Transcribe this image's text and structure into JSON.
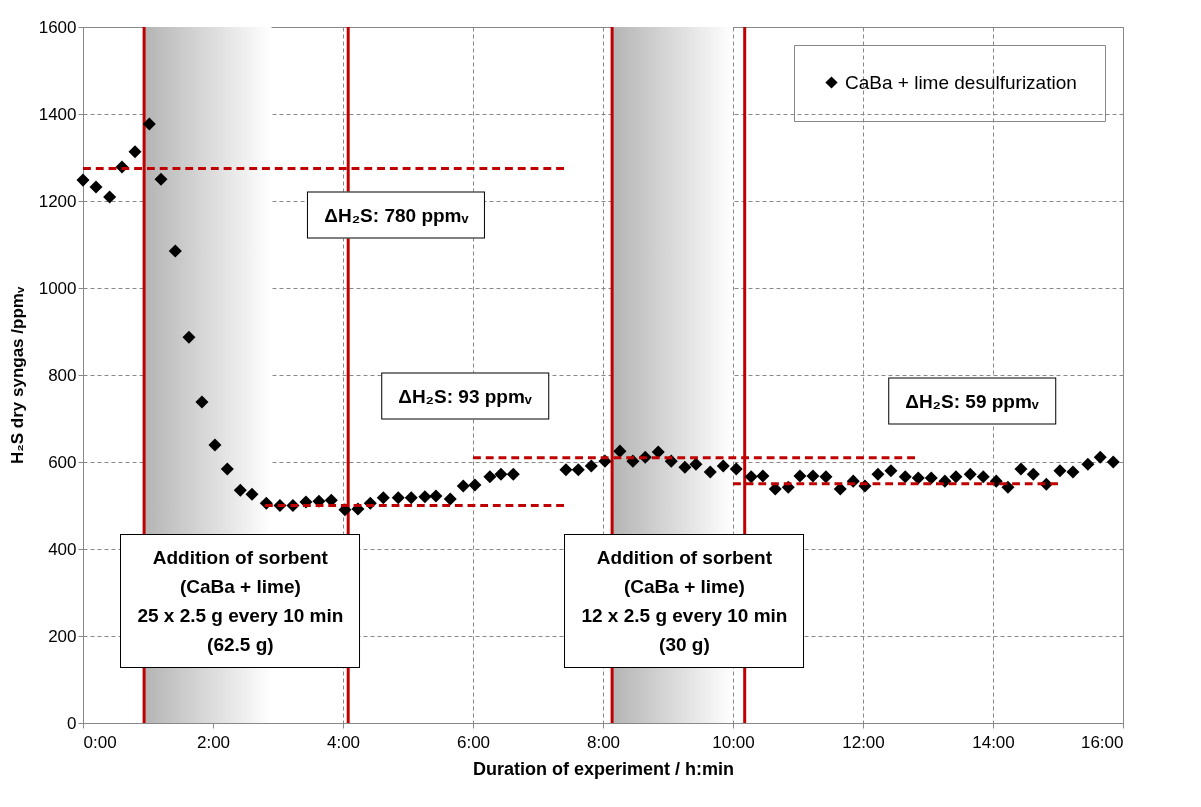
{
  "chart_data": {
    "type": "scatter",
    "xlabel": "Duration of experiment / h:min",
    "ylabel": "H₂S dry syngas /ppmᵥ",
    "xlim": [
      0,
      16
    ],
    "xticks": [
      {
        "value": 0,
        "label": "0:00"
      },
      {
        "value": 2,
        "label": "2:00"
      },
      {
        "value": 4,
        "label": "4:00"
      },
      {
        "value": 6,
        "label": "6:00"
      },
      {
        "value": 8,
        "label": "8:00"
      },
      {
        "value": 10,
        "label": "10:00"
      },
      {
        "value": 12,
        "label": "12:00"
      },
      {
        "value": 14,
        "label": "14:00"
      },
      {
        "value": 16,
        "label": "16:00"
      }
    ],
    "ylim": [
      0,
      1600
    ],
    "yticks": [
      0,
      200,
      400,
      600,
      800,
      1000,
      1200,
      1400,
      1600
    ],
    "grid": true,
    "legend": "top right",
    "marker": "diamond",
    "series": [
      {
        "name": "CaBa + lime desulfurization",
        "color": "#000000",
        "x": [
          0,
          0.2,
          0.41,
          0.6,
          0.8,
          1.02,
          1.2,
          1.42,
          1.63,
          1.83,
          2.03,
          2.22,
          2.42,
          2.6,
          2.82,
          3.03,
          3.23,
          3.43,
          3.63,
          3.82,
          4.03,
          4.23,
          4.42,
          4.62,
          4.85,
          5.05,
          5.26,
          5.43,
          5.65,
          5.85,
          6.03,
          6.26,
          6.43,
          6.62,
          7.43,
          7.62,
          7.82,
          8.03,
          8.26,
          8.46,
          8.65,
          8.85,
          9.05,
          9.26,
          9.43,
          9.65,
          9.85,
          10.05,
          10.28,
          10.46,
          10.65,
          10.85,
          11.03,
          11.23,
          11.43,
          11.65,
          11.85,
          12.03,
          12.23,
          12.43,
          12.65,
          12.85,
          13.05,
          13.26,
          13.43,
          13.65,
          13.85,
          14.05,
          14.23,
          14.43,
          14.62,
          14.82,
          15.03,
          15.23,
          15.46,
          15.65,
          15.85
        ],
        "values": [
          1248,
          1232,
          1209,
          1278,
          1313,
          1377,
          1250,
          1085,
          887,
          738,
          639,
          584,
          535,
          526,
          505,
          500,
          500,
          508,
          510,
          512,
          490,
          492,
          505,
          518,
          518,
          518,
          520,
          522,
          515,
          545,
          547,
          566,
          572,
          572,
          582,
          582,
          591,
          602,
          625,
          602,
          611,
          623,
          602,
          588,
          595,
          577,
          591,
          584,
          566,
          568,
          538,
          542,
          568,
          568,
          566,
          538,
          556,
          545,
          572,
          580,
          566,
          563,
          563,
          556,
          566,
          572,
          566,
          556,
          542,
          584,
          572,
          549,
          580,
          577,
          595,
          611,
          600
        ]
      },
      {
        "type": "line",
        "color": "#c00000",
        "line_style": "dashed",
        "marker": "none",
        "x": [
          0,
          7.4
        ],
        "values": [
          1275,
          1275
        ]
      },
      {
        "type": "line",
        "color": "#c00000",
        "line_style": "dashed",
        "marker": "none",
        "x": [
          2.8,
          7.4
        ],
        "values": [
          500,
          500
        ]
      },
      {
        "type": "line",
        "color": "#c00000",
        "line_style": "dashed",
        "marker": "none",
        "x": [
          6.0,
          12.8
        ],
        "values": [
          610,
          610
        ]
      },
      {
        "type": "line",
        "color": "#c00000",
        "line_style": "dashed",
        "marker": "none",
        "x": [
          10.0,
          15.0
        ],
        "values": [
          550,
          550
        ]
      }
    ],
    "ref_lines": [
      {
        "axis": "x",
        "value": 0.94,
        "color": "#c00000"
      },
      {
        "axis": "x",
        "value": 4.08,
        "color": "#c00000"
      },
      {
        "axis": "x",
        "value": 8.14,
        "color": "#c00000"
      },
      {
        "axis": "x",
        "value": 10.18,
        "color": "#c00000"
      }
    ],
    "bands": [
      {
        "axis": "x",
        "from": 0.94,
        "to": 2.9,
        "color": "#b4b4b4"
      },
      {
        "axis": "x",
        "from": 8.14,
        "to": 10.0,
        "color": "#b4b4b4"
      }
    ],
    "annotations": [
      "ΔH₂S: 780 ppmᵥ",
      "ΔH₂S: 93 ppmᵥ",
      "ΔH₂S: 59 ppmᵥ",
      "Addition of sorbent\n(CaBa + lime)\n25 x 2.5 g every 10 min\n(62.5 g)",
      "Addition of sorbent\n(CaBa + lime)\n12 x 2.5 g every 10 min\n(30 g)"
    ]
  }
}
